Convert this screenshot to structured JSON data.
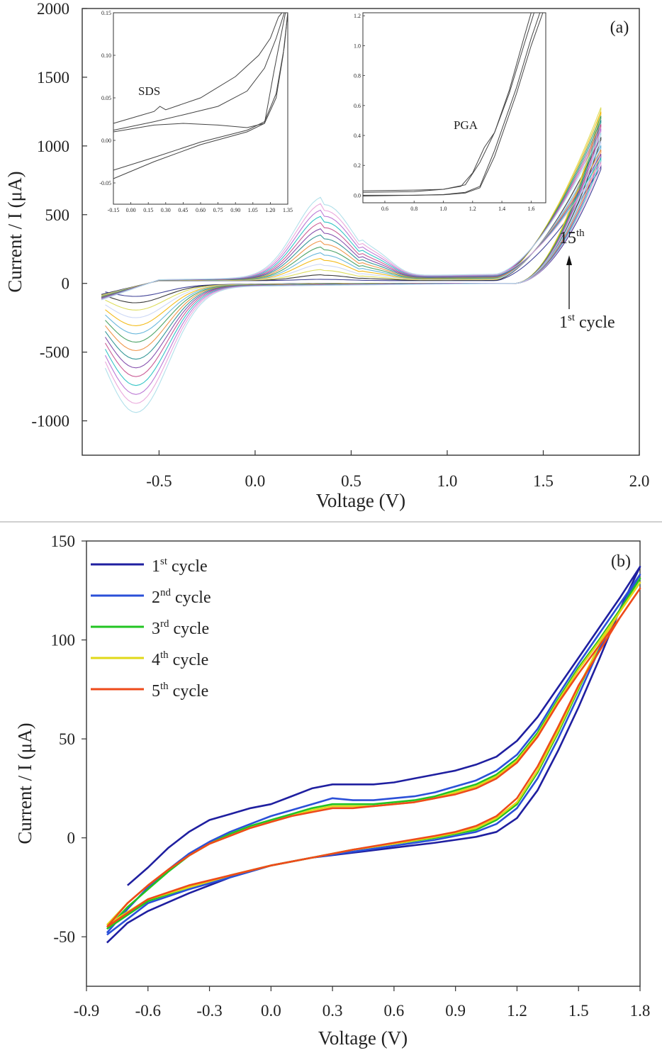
{
  "chart_data": [
    {
      "id": "a",
      "type": "line",
      "panel_label": "(a)",
      "xlabel": "Voltage (V)",
      "ylabel": "Current / I (μA)",
      "xlim": [
        -0.9,
        2.0
      ],
      "ylim": [
        -1250,
        2000
      ],
      "xticks": [
        "-0.5",
        "0.0",
        "0.5",
        "1.0",
        "1.5",
        "2.0"
      ],
      "xtick_values": [
        -0.5,
        0.0,
        0.5,
        1.0,
        1.5,
        2.0
      ],
      "yticks": [
        "2000",
        "1500",
        "1000",
        "500",
        "0",
        "-500",
        "-1000"
      ],
      "ytick_values": [
        2000,
        1500,
        1000,
        500,
        0,
        -500,
        -1000
      ],
      "cycles": 15,
      "cycle_colors": [
        "#2b2d8c",
        "#222222",
        "#d9d94a",
        "#c8d4f4",
        "#f2b400",
        "#5bb0d8",
        "#3a9a58",
        "#ee8c3a",
        "#1f8c8c",
        "#7a3fa5",
        "#c44d8c",
        "#1fbfc0",
        "#b56bd0",
        "#e8a0d8",
        "#a8dde8"
      ],
      "oxidation_peak": {
        "x": 0.36,
        "first_cycle_uA": 10,
        "fifteenth_cycle_uA": 585
      },
      "reduction_peak": {
        "x": -0.62,
        "first_cycle_uA": -80,
        "fifteenth_cycle_uA": -910
      },
      "anodic_limit": {
        "x": 1.8,
        "range_uA": [
          850,
          1280
        ]
      },
      "cathodic_limit": {
        "x": -0.8,
        "range_uA": [
          -130,
          -820
        ]
      },
      "annotations": {
        "top": {
          "base": "15",
          "sup": "th"
        },
        "bottom": {
          "base": "1",
          "sup": "st",
          "rest": " cycle"
        }
      },
      "insets": [
        {
          "label": "SDS",
          "xlim": [
            -0.15,
            1.35
          ],
          "ylim": [
            -0.075,
            0.15
          ],
          "xticks": [
            "-0.15",
            "0.00",
            "0.15",
            "0.30",
            "0.45",
            "0.60",
            "0.75",
            "0.90",
            "1.05",
            "1.20",
            "1.35"
          ],
          "xtick_values": [
            -0.15,
            0.0,
            0.15,
            0.3,
            0.45,
            0.6,
            0.75,
            0.9,
            1.05,
            1.2,
            1.35
          ],
          "yticks": [
            "0.15",
            "0.10",
            "0.05",
            "0.00",
            "-0.05"
          ],
          "ytick_values": [
            0.15,
            0.1,
            0.05,
            0.0,
            -0.05
          ],
          "series": [
            {
              "name": "",
              "x": [
                -0.15,
                0.1,
                0.2,
                0.25,
                0.3,
                0.6,
                0.9,
                1.1,
                1.2,
                1.27,
                1.3
              ],
              "y": [
                0.02,
                0.03,
                0.034,
                0.04,
                0.036,
                0.05,
                0.075,
                0.1,
                0.12,
                0.145,
                0.15
              ]
            },
            {
              "name": "",
              "x": [
                -0.15,
                0.2,
                0.45,
                0.75,
                1.0,
                1.15,
                1.25,
                1.32
              ],
              "y": [
                0.012,
                0.022,
                0.03,
                0.04,
                0.058,
                0.085,
                0.12,
                0.15
              ]
            },
            {
              "name": "",
              "x": [
                -0.15,
                0.2,
                0.45,
                0.75,
                1.0,
                1.15,
                1.23,
                1.33
              ],
              "y": [
                0.01,
                0.018,
                0.02,
                0.018,
                0.015,
                0.02,
                0.08,
                0.15
              ]
            },
            {
              "name": "",
              "x": [
                -0.15,
                0.2,
                0.6,
                1.0,
                1.15,
                1.25,
                1.31,
                1.35
              ],
              "y": [
                -0.045,
                -0.025,
                -0.005,
                0.01,
                0.02,
                0.05,
                0.1,
                0.15
              ]
            },
            {
              "name": "",
              "x": [
                -0.15,
                0.2,
                0.6,
                1.0,
                1.15,
                1.25,
                1.32,
                1.35
              ],
              "y": [
                -0.035,
                -0.02,
                -0.002,
                0.012,
                0.022,
                0.055,
                0.11,
                0.15
              ]
            }
          ]
        },
        {
          "label": "PGA",
          "xlim": [
            0.45,
            1.7
          ],
          "ylim": [
            -0.05,
            1.22
          ],
          "xticks": [
            "0.6",
            "0.8",
            "1.0",
            "1.2",
            "1.4",
            "1.6"
          ],
          "xtick_values": [
            0.6,
            0.8,
            1.0,
            1.2,
            1.4,
            1.6
          ],
          "yticks": [
            "1.2",
            "1.0",
            "0.8",
            "0.6",
            "0.4",
            "0.2",
            "0.0"
          ],
          "ytick_values": [
            1.2,
            1.0,
            0.8,
            0.6,
            0.4,
            0.2,
            0.0
          ],
          "series": [
            {
              "name": "",
              "x": [
                0.45,
                0.8,
                1.0,
                1.12,
                1.2,
                1.28,
                1.35,
                1.45,
                1.55,
                1.6
              ],
              "y": [
                0.03,
                0.035,
                0.04,
                0.06,
                0.15,
                0.32,
                0.42,
                0.7,
                1.05,
                1.22
              ]
            },
            {
              "name": "",
              "x": [
                0.45,
                0.8,
                1.0,
                1.15,
                1.25,
                1.35,
                1.45,
                1.55,
                1.62
              ],
              "y": [
                0.02,
                0.025,
                0.04,
                0.07,
                0.22,
                0.42,
                0.68,
                1.0,
                1.22
              ]
            },
            {
              "name": "",
              "x": [
                0.45,
                0.8,
                1.0,
                1.15,
                1.25,
                1.35,
                1.5,
                1.6,
                1.66
              ],
              "y": [
                0.0,
                0.0,
                0.005,
                0.02,
                0.06,
                0.3,
                0.72,
                1.05,
                1.22
              ]
            },
            {
              "name": "",
              "x": [
                0.45,
                0.8,
                1.0,
                1.15,
                1.25,
                1.35,
                1.5,
                1.6,
                1.68
              ],
              "y": [
                -0.005,
                0.0,
                0.003,
                0.015,
                0.05,
                0.26,
                0.68,
                1.0,
                1.22
              ]
            }
          ]
        }
      ]
    },
    {
      "id": "b",
      "type": "line",
      "panel_label": "(b)",
      "xlabel": "Voltage (V)",
      "ylabel": "Current / I (μA)",
      "xlim": [
        -0.9,
        1.8
      ],
      "ylim": [
        -75,
        150
      ],
      "xticks": [
        "-0.9",
        "-0.6",
        "-0.3",
        "0.0",
        "0.3",
        "0.6",
        "0.9",
        "1.2",
        "1.5",
        "1.8"
      ],
      "xtick_values": [
        -0.9,
        -0.6,
        -0.3,
        0.0,
        0.3,
        0.6,
        0.9,
        1.2,
        1.5,
        1.8
      ],
      "yticks": [
        "150",
        "100",
        "50",
        "0",
        "-50"
      ],
      "ytick_values": [
        150,
        100,
        50,
        0,
        -50
      ],
      "legend": {
        "position": "top-left",
        "entries": [
          {
            "base": "1",
            "sup": "st",
            "rest": " cycle"
          },
          {
            "base": "2",
            "sup": "nd",
            "rest": " cycle"
          },
          {
            "base": "3",
            "sup": "rd",
            "rest": " cycle"
          },
          {
            "base": "4",
            "sup": "th",
            "rest": " cycle"
          },
          {
            "base": "5",
            "sup": "th",
            "rest": " cycle"
          }
        ]
      },
      "series": [
        {
          "name": "1st cycle",
          "color": "#1f1fa0",
          "forward": {
            "x": [
              -0.7,
              -0.6,
              -0.5,
              -0.4,
              -0.3,
              -0.2,
              -0.1,
              0.0,
              0.1,
              0.2,
              0.3,
              0.4,
              0.5,
              0.6,
              0.7,
              0.8,
              0.9,
              1.0,
              1.1,
              1.2,
              1.3,
              1.4,
              1.5,
              1.6,
              1.7,
              1.8
            ],
            "y": [
              -24,
              -15,
              -5,
              3,
              9,
              12,
              15,
              17,
              21,
              25,
              27,
              27,
              27,
              28,
              30,
              32,
              34,
              37,
              41,
              49,
              61,
              76,
              91,
              106,
              121,
              137
            ]
          },
          "reverse": {
            "x": [
              1.8,
              1.7,
              1.6,
              1.5,
              1.4,
              1.3,
              1.2,
              1.1,
              1.0,
              0.9,
              0.8,
              0.6,
              0.4,
              0.2,
              0.0,
              -0.2,
              -0.4,
              -0.6,
              -0.7,
              -0.8
            ],
            "y": [
              137,
              115,
              90,
              66,
              44,
              24,
              10,
              3,
              0.5,
              -1,
              -2.5,
              -5,
              -7.5,
              -10,
              -14,
              -20,
              -28,
              -37,
              -43,
              -53
            ]
          }
        },
        {
          "name": "2nd cycle",
          "color": "#2b50d8",
          "forward": {
            "x": [
              -0.8,
              -0.7,
              -0.6,
              -0.5,
              -0.4,
              -0.3,
              -0.2,
              -0.1,
              0.0,
              0.1,
              0.2,
              0.3,
              0.4,
              0.5,
              0.6,
              0.7,
              0.8,
              0.9,
              1.0,
              1.1,
              1.2,
              1.3,
              1.4,
              1.5,
              1.6,
              1.7,
              1.8
            ],
            "y": [
              -48,
              -36,
              -25,
              -16,
              -8,
              -2,
              3,
              7,
              11,
              14,
              17,
              20,
              19,
              19,
              20,
              21,
              23,
              26,
              29,
              34,
              42,
              55,
              72,
              88,
              103,
              118,
              133
            ]
          },
          "reverse": {
            "x": [
              1.8,
              1.7,
              1.6,
              1.5,
              1.4,
              1.3,
              1.2,
              1.1,
              1.0,
              0.9,
              0.8,
              0.6,
              0.4,
              0.2,
              0.0,
              -0.2,
              -0.4,
              -0.6,
              -0.8
            ],
            "y": [
              133,
              115,
              95,
              72,
              50,
              30,
              15,
              7,
              3,
              1,
              -1,
              -4,
              -7,
              -10,
              -14,
              -20,
              -26,
              -33,
              -49
            ]
          }
        },
        {
          "name": "3rd cycle",
          "color": "#22c422",
          "forward": {
            "x": [
              -0.8,
              -0.7,
              -0.6,
              -0.5,
              -0.4,
              -0.3,
              -0.2,
              -0.1,
              0.0,
              0.1,
              0.2,
              0.3,
              0.4,
              0.5,
              0.6,
              0.7,
              0.8,
              0.9,
              1.0,
              1.1,
              1.2,
              1.3,
              1.4,
              1.5,
              1.6,
              1.7,
              1.8
            ],
            "y": [
              -46,
              -35,
              -26,
              -17,
              -9,
              -3,
              2,
              6,
              9,
              12,
              15,
              17,
              17,
              17,
              18,
              19,
              21,
              24,
              27,
              32,
              40,
              53,
              70,
              86,
              100,
              115,
              131
            ]
          },
          "reverse": {
            "x": [
              1.8,
              1.7,
              1.6,
              1.5,
              1.4,
              1.3,
              1.2,
              1.1,
              1.0,
              0.9,
              0.8,
              0.6,
              0.4,
              0.2,
              0.0,
              -0.2,
              -0.4,
              -0.6,
              -0.8
            ],
            "y": [
              131,
              115,
              97,
              75,
              53,
              33,
              17,
              9,
              4,
              2,
              0,
              -3,
              -6,
              -10,
              -14,
              -19,
              -25,
              -32,
              -46
            ]
          }
        },
        {
          "name": "4th cycle",
          "color": "#e0d818",
          "forward": {
            "x": [
              -0.8,
              -0.7,
              -0.6,
              -0.5,
              -0.4,
              -0.3,
              -0.2,
              -0.1,
              0.0,
              0.1,
              0.2,
              0.3,
              0.4,
              0.5,
              0.6,
              0.7,
              0.8,
              0.9,
              1.0,
              1.1,
              1.2,
              1.3,
              1.4,
              1.5,
              1.6,
              1.7,
              1.8
            ],
            "y": [
              -44,
              -33,
              -24,
              -16,
              -9,
              -3,
              1,
              5,
              8,
              11,
              14,
              16,
              16,
              16,
              17,
              18,
              20,
              23,
              26,
              31,
              39,
              52,
              69,
              85,
              99,
              114,
              129
            ]
          },
          "reverse": {
            "x": [
              1.8,
              1.7,
              1.6,
              1.5,
              1.4,
              1.3,
              1.2,
              1.1,
              1.0,
              0.9,
              0.8,
              0.6,
              0.4,
              0.2,
              0.0,
              -0.2,
              -0.4,
              -0.6,
              -0.8
            ],
            "y": [
              129,
              114,
              97,
              76,
              54,
              34,
              18,
              10,
              5,
              2.5,
              0.5,
              -3,
              -6,
              -10,
              -14,
              -19,
              -25,
              -31,
              -44
            ]
          }
        },
        {
          "name": "5th cycle",
          "color": "#ee4a1a",
          "forward": {
            "x": [
              -0.8,
              -0.7,
              -0.6,
              -0.5,
              -0.4,
              -0.3,
              -0.2,
              -0.1,
              0.0,
              0.1,
              0.2,
              0.3,
              0.4,
              0.5,
              0.6,
              0.7,
              0.8,
              0.9,
              1.0,
              1.1,
              1.2,
              1.3,
              1.4,
              1.5,
              1.6,
              1.7,
              1.8
            ],
            "y": [
              -45,
              -33,
              -24,
              -16,
              -9,
              -3,
              1,
              5,
              8,
              11,
              13,
              15,
              15,
              16,
              17,
              18,
              20,
              22,
              25,
              30,
              38,
              51,
              68,
              83,
              97,
              111,
              126
            ]
          },
          "reverse": {
            "x": [
              1.8,
              1.7,
              1.6,
              1.5,
              1.4,
              1.3,
              1.2,
              1.1,
              1.0,
              0.9,
              0.8,
              0.6,
              0.4,
              0.2,
              0.0,
              -0.2,
              -0.4,
              -0.6,
              -0.8
            ],
            "y": [
              126,
              111,
              94,
              77,
              56,
              36,
              20,
              11,
              6,
              3,
              1,
              -2.5,
              -6,
              -10,
              -14,
              -19,
              -24,
              -31,
              -45
            ]
          }
        }
      ]
    }
  ]
}
